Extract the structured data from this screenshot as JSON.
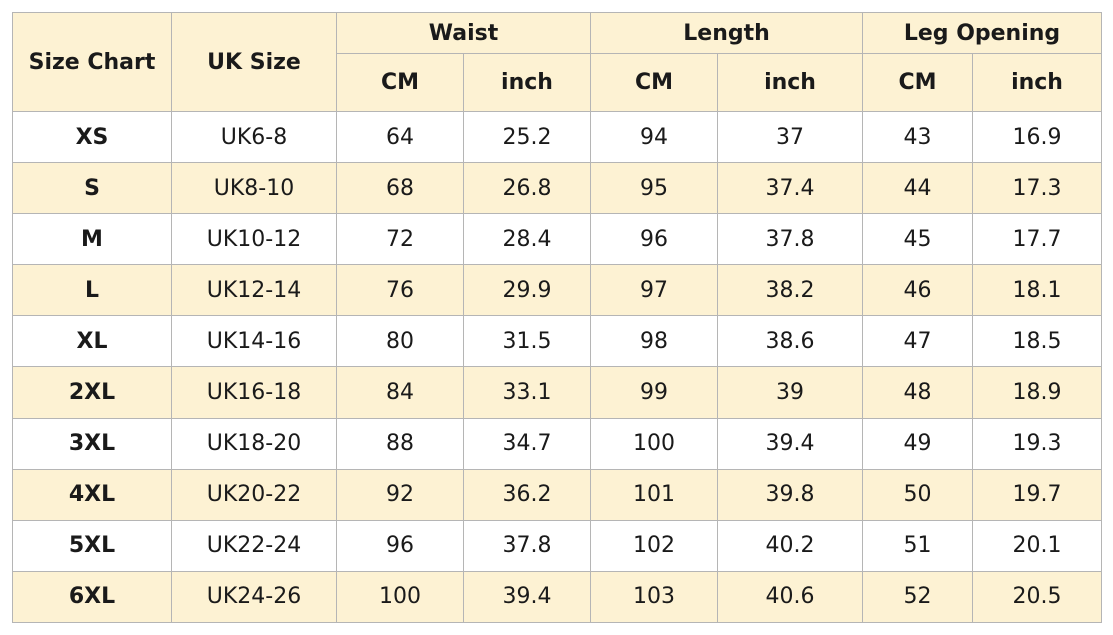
{
  "header": {
    "size_chart": "Size Chart",
    "uk_size": "UK Size",
    "waist": "Waist",
    "length": "Length",
    "leg_opening": "Leg Opening",
    "cm": "CM",
    "inch": "inch"
  },
  "rows": [
    {
      "size": "XS",
      "uk": "UK6-8",
      "waist_cm": "64",
      "waist_in": "25.2",
      "length_cm": "94",
      "length_in": "37",
      "leg_cm": "43",
      "leg_in": "16.9"
    },
    {
      "size": "S",
      "uk": "UK8-10",
      "waist_cm": "68",
      "waist_in": "26.8",
      "length_cm": "95",
      "length_in": "37.4",
      "leg_cm": "44",
      "leg_in": "17.3"
    },
    {
      "size": "M",
      "uk": "UK10-12",
      "waist_cm": "72",
      "waist_in": "28.4",
      "length_cm": "96",
      "length_in": "37.8",
      "leg_cm": "45",
      "leg_in": "17.7"
    },
    {
      "size": "L",
      "uk": "UK12-14",
      "waist_cm": "76",
      "waist_in": "29.9",
      "length_cm": "97",
      "length_in": "38.2",
      "leg_cm": "46",
      "leg_in": "18.1"
    },
    {
      "size": "XL",
      "uk": "UK14-16",
      "waist_cm": "80",
      "waist_in": "31.5",
      "length_cm": "98",
      "length_in": "38.6",
      "leg_cm": "47",
      "leg_in": "18.5"
    },
    {
      "size": "2XL",
      "uk": "UK16-18",
      "waist_cm": "84",
      "waist_in": "33.1",
      "length_cm": "99",
      "length_in": "39",
      "leg_cm": "48",
      "leg_in": "18.9"
    },
    {
      "size": "3XL",
      "uk": "UK18-20",
      "waist_cm": "88",
      "waist_in": "34.7",
      "length_cm": "100",
      "length_in": "39.4",
      "leg_cm": "49",
      "leg_in": "19.3"
    },
    {
      "size": "4XL",
      "uk": "UK20-22",
      "waist_cm": "92",
      "waist_in": "36.2",
      "length_cm": "101",
      "length_in": "39.8",
      "leg_cm": "50",
      "leg_in": "19.7"
    },
    {
      "size": "5XL",
      "uk": "UK22-24",
      "waist_cm": "96",
      "waist_in": "37.8",
      "length_cm": "102",
      "length_in": "40.2",
      "leg_cm": "51",
      "leg_in": "20.1"
    },
    {
      "size": "6XL",
      "uk": "UK24-26",
      "waist_cm": "100",
      "waist_in": "39.4",
      "length_cm": "103",
      "length_in": "40.6",
      "leg_cm": "52",
      "leg_in": "20.5"
    }
  ],
  "colors": {
    "header_bg": "#fdf2d3",
    "alt_row_bg": "#fdf2d3",
    "border": "#b5b5b5"
  }
}
